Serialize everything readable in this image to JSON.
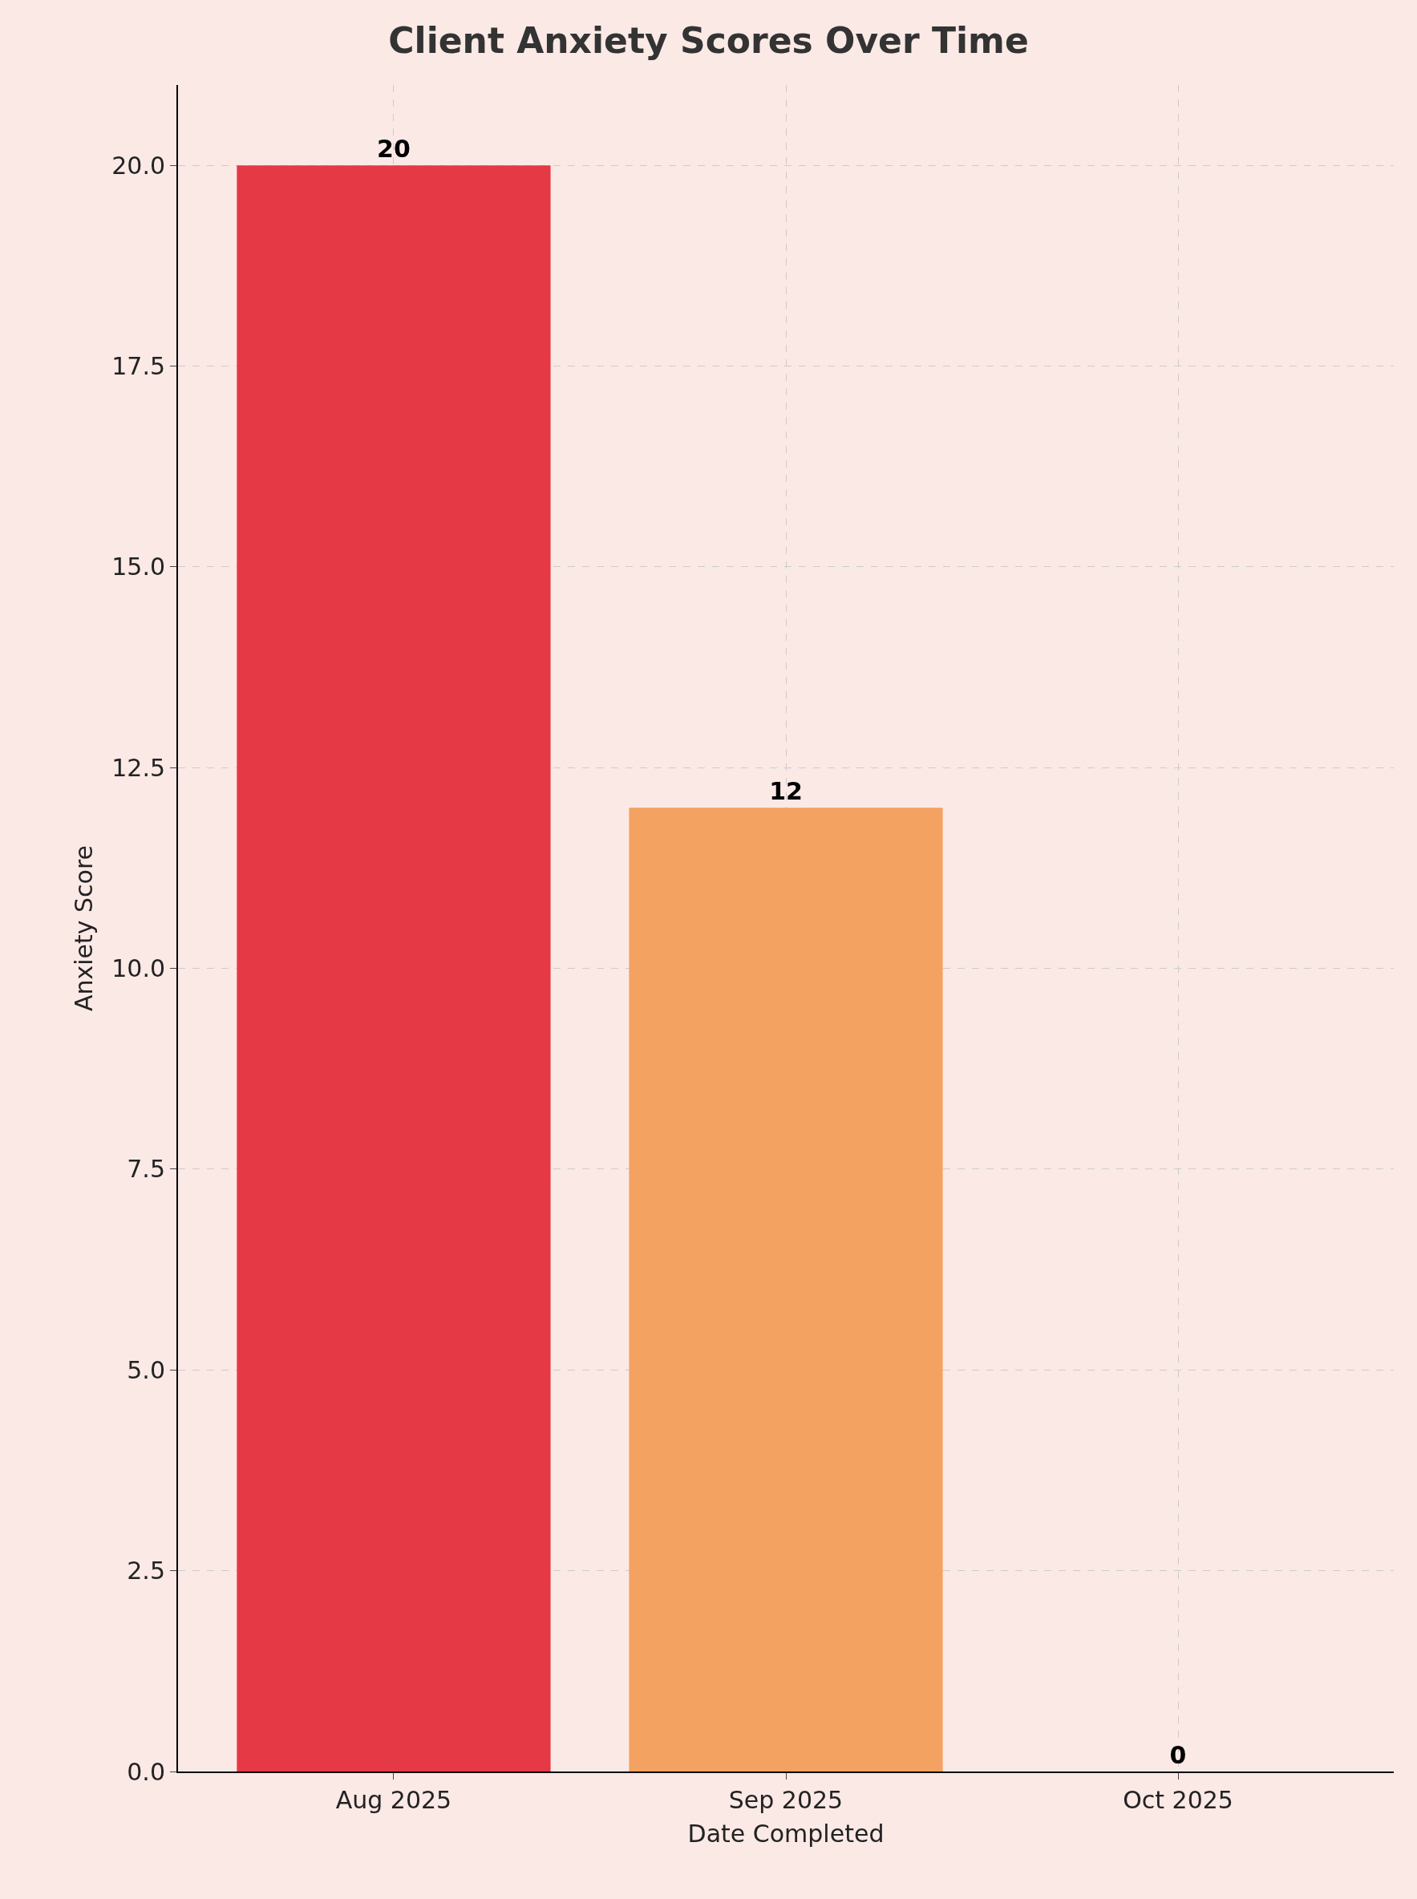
{
  "chart_data": {
    "type": "bar",
    "title": "Client Anxiety Scores Over Time",
    "xlabel": "Date Completed",
    "ylabel": "Anxiety Score",
    "categories": [
      "Aug 2025",
      "Sep 2025",
      "Oct 2025"
    ],
    "values": [
      20,
      12,
      0
    ],
    "colors": [
      "#e63946",
      "#f4a261",
      "#2a9d8f"
    ],
    "ylim": [
      0,
      21
    ],
    "yticks": [
      {
        "value": 0,
        "label": "0.0"
      },
      {
        "value": 2.5,
        "label": "2.5"
      },
      {
        "value": 5,
        "label": "5.0"
      },
      {
        "value": 7.5,
        "label": "7.5"
      },
      {
        "value": 10,
        "label": "10.0"
      },
      {
        "value": 12.5,
        "label": "12.5"
      },
      {
        "value": 15,
        "label": "15.0"
      },
      {
        "value": 17.5,
        "label": "17.5"
      },
      {
        "value": 20,
        "label": "20.0"
      }
    ],
    "grid": true,
    "data_labels": true
  }
}
